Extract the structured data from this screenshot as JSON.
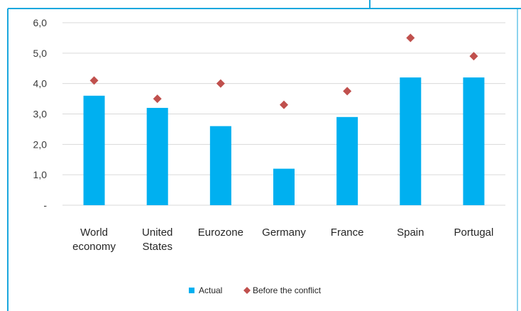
{
  "colors": {
    "frame": "#1aa7de",
    "actual": "#00b0f0",
    "before": "#c0504d",
    "grid": "#d9d9d9"
  },
  "chart_data": {
    "type": "bar",
    "categories": [
      [
        "World",
        "economy"
      ],
      [
        "United",
        "States"
      ],
      [
        "Eurozone"
      ],
      [
        "Germany"
      ],
      [
        "France"
      ],
      [
        "Spain"
      ],
      [
        "Portugal"
      ]
    ],
    "series": [
      {
        "name": "Actual",
        "type": "bar",
        "values": [
          3.6,
          3.2,
          2.6,
          1.2,
          2.9,
          4.2,
          4.2
        ]
      },
      {
        "name": "Before the conflict",
        "type": "scatter",
        "marker": "diamond",
        "values": [
          4.1,
          3.5,
          4.0,
          3.3,
          3.75,
          5.5,
          4.9
        ]
      }
    ],
    "yticks": [
      "-",
      "1,0",
      "2,0",
      "3,0",
      "4,0",
      "5,0",
      "6,0"
    ],
    "ylim": [
      0,
      6
    ],
    "grid": true,
    "legend": "bottom-center"
  }
}
